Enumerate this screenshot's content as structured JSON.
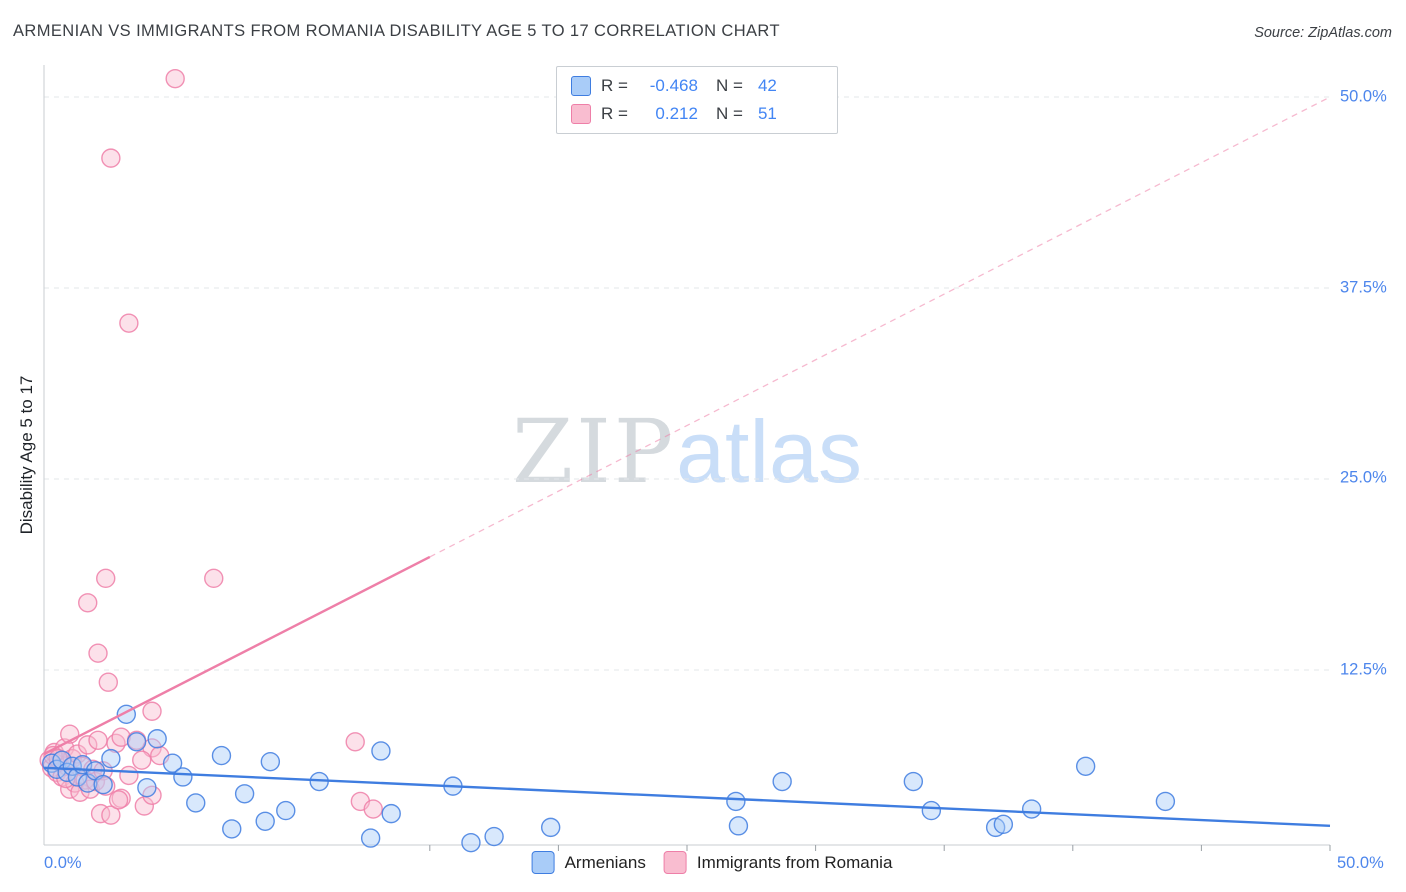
{
  "header": {
    "title": "ARMENIAN VS IMMIGRANTS FROM ROMANIA DISABILITY AGE 5 TO 17 CORRELATION CHART",
    "source": "Source: ZipAtlas.com"
  },
  "watermark": {
    "zip": "ZIP",
    "atlas": "atlas"
  },
  "colors": {
    "value_blue": "#4285f4",
    "axis_label_blue": "#4d86ec"
  },
  "correlation_legend": {
    "rows": [
      {
        "r_label": "R =",
        "r_value": "-0.468",
        "n_label": "N =",
        "n_value": "42"
      },
      {
        "r_label": "R =",
        "r_value": "0.212",
        "n_label": "N =",
        "n_value": "51"
      }
    ]
  },
  "axes": {
    "y_axis_title": "Disability Age 5 to 17",
    "y_tick_labels": [
      "50.0%",
      "37.5%",
      "25.0%",
      "12.5%"
    ],
    "x_tick_labels": [
      "0.0%",
      "50.0%"
    ]
  },
  "series_legend": [
    {
      "label": "Armenians"
    },
    {
      "label": "Immigrants from Romania"
    }
  ],
  "chart_data": {
    "type": "scatter",
    "title": "ARMENIAN VS IMMIGRANTS FROM ROMANIA DISABILITY AGE 5 TO 17 CORRELATION CHART",
    "xlabel": "",
    "ylabel": "Disability Age 5 to 17",
    "xlim": [
      0,
      50
    ],
    "ylim": [
      0,
      52
    ],
    "grid": true,
    "legend_position": "top-center",
    "y_ticks": [
      {
        "value": 50,
        "label": "50.0%"
      },
      {
        "value": 37.5,
        "label": "37.5%"
      },
      {
        "value": 25,
        "label": "25.0%"
      },
      {
        "value": 12.5,
        "label": "12.5%"
      }
    ],
    "x_ticks": [
      15,
      20,
      25,
      30,
      35,
      40,
      45,
      50
    ],
    "series": [
      {
        "id": "armenians",
        "name": "Armenians",
        "R": -0.468,
        "N": 42,
        "color": "#3f7de0",
        "fill": "#a9ccf8",
        "trend": {
          "x1": 0,
          "y1": 6.1,
          "x2": 50,
          "y2": 2.3,
          "solid_to_x": 50
        },
        "points": [
          [
            0.3,
            6.4
          ],
          [
            0.5,
            6.0
          ],
          [
            0.7,
            6.6
          ],
          [
            0.9,
            5.8
          ],
          [
            1.1,
            6.2
          ],
          [
            1.3,
            5.5
          ],
          [
            1.5,
            6.3
          ],
          [
            1.7,
            5.1
          ],
          [
            2.0,
            5.9
          ],
          [
            2.3,
            5.0
          ],
          [
            2.6,
            6.7
          ],
          [
            3.2,
            9.6
          ],
          [
            3.6,
            7.8
          ],
          [
            4.0,
            4.8
          ],
          [
            4.4,
            8.0
          ],
          [
            5.0,
            6.4
          ],
          [
            5.4,
            5.5
          ],
          [
            5.9,
            3.8
          ],
          [
            6.9,
            6.9
          ],
          [
            7.3,
            2.1
          ],
          [
            7.8,
            4.4
          ],
          [
            8.6,
            2.6
          ],
          [
            8.8,
            6.5
          ],
          [
            9.4,
            3.3
          ],
          [
            10.7,
            5.2
          ],
          [
            12.7,
            1.5
          ],
          [
            13.1,
            7.2
          ],
          [
            13.5,
            3.1
          ],
          [
            15.9,
            4.9
          ],
          [
            16.6,
            1.2
          ],
          [
            17.5,
            1.6
          ],
          [
            19.7,
            2.2
          ],
          [
            26.9,
            3.9
          ],
          [
            27.0,
            2.3
          ],
          [
            28.7,
            5.2
          ],
          [
            33.8,
            5.2
          ],
          [
            34.5,
            3.3
          ],
          [
            37.0,
            2.2
          ],
          [
            37.3,
            2.4
          ],
          [
            38.4,
            3.4
          ],
          [
            40.5,
            6.2
          ],
          [
            43.6,
            3.9
          ]
        ]
      },
      {
        "id": "romania",
        "name": "Immigrants from Romania",
        "R": 0.212,
        "N": 51,
        "color": "#ee7fa8",
        "fill": "#f9bdd0",
        "trend": {
          "x1": 0,
          "y1": 7.0,
          "x2": 50,
          "y2": 50.0,
          "solid_to_x": 15
        },
        "points": [
          [
            5.1,
            51.2
          ],
          [
            2.6,
            46.0
          ],
          [
            3.3,
            35.2
          ],
          [
            2.4,
            18.5
          ],
          [
            6.6,
            18.5
          ],
          [
            1.7,
            16.9
          ],
          [
            2.1,
            13.6
          ],
          [
            2.5,
            11.7
          ],
          [
            4.2,
            9.8
          ],
          [
            0.2,
            6.6
          ],
          [
            0.3,
            6.1
          ],
          [
            0.4,
            7.1
          ],
          [
            0.5,
            5.8
          ],
          [
            0.6,
            6.5
          ],
          [
            0.7,
            5.5
          ],
          [
            0.8,
            7.4
          ],
          [
            0.9,
            6.2
          ],
          [
            1.0,
            4.7
          ],
          [
            1.0,
            8.3
          ],
          [
            1.1,
            6.7
          ],
          [
            1.2,
            5.1
          ],
          [
            1.3,
            7.0
          ],
          [
            1.4,
            4.5
          ],
          [
            1.5,
            6.2
          ],
          [
            1.6,
            5.3
          ],
          [
            1.7,
            7.6
          ],
          [
            1.8,
            4.7
          ],
          [
            1.9,
            6.0
          ],
          [
            2.0,
            5.2
          ],
          [
            2.1,
            7.9
          ],
          [
            2.2,
            3.1
          ],
          [
            2.3,
            5.9
          ],
          [
            2.4,
            4.9
          ],
          [
            2.6,
            3.0
          ],
          [
            2.8,
            7.7
          ],
          [
            3.0,
            4.1
          ],
          [
            3.0,
            8.1
          ],
          [
            3.3,
            5.6
          ],
          [
            3.6,
            7.9
          ],
          [
            3.9,
            3.6
          ],
          [
            4.2,
            7.4
          ],
          [
            4.5,
            6.9
          ],
          [
            2.9,
            4.0
          ],
          [
            3.8,
            6.6
          ],
          [
            4.2,
            4.3
          ],
          [
            12.1,
            7.8
          ],
          [
            12.3,
            3.9
          ],
          [
            12.8,
            3.4
          ],
          [
            0.35,
            6.9
          ],
          [
            0.55,
            6.7
          ],
          [
            0.85,
            5.4
          ]
        ]
      }
    ]
  }
}
